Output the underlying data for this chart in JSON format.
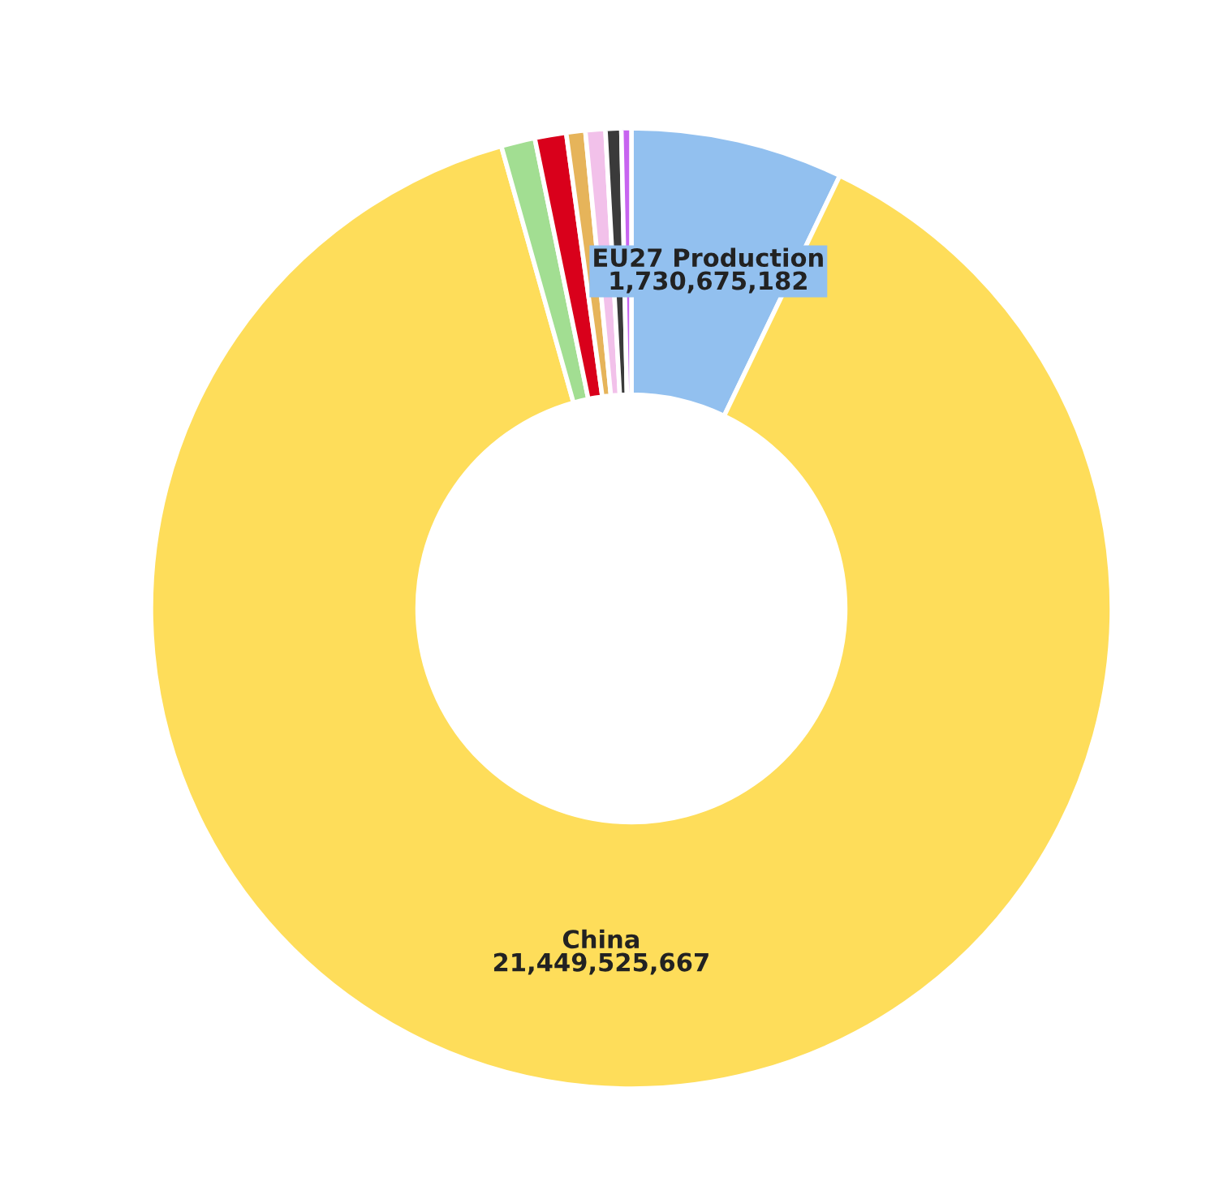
{
  "chart_data": {
    "type": "donut",
    "categories": [
      "EU27 Production",
      "China",
      null,
      null,
      null,
      null,
      null,
      null
    ],
    "values": [
      1730675182,
      21449525667,
      276000000,
      256000000,
      155000000,
      162000000,
      128000000,
      81000000
    ],
    "colors": [
      "#92c0ef",
      "#fedd5a",
      "#a2de92",
      "#d9001b",
      "#e6b45a",
      "#f2c1ea",
      "#3a3a3a",
      "#c764f0"
    ],
    "value_labels": [
      "1,730,675,182",
      "21,449,525,667",
      null,
      null,
      null,
      null,
      null,
      null
    ],
    "legend": false
  }
}
